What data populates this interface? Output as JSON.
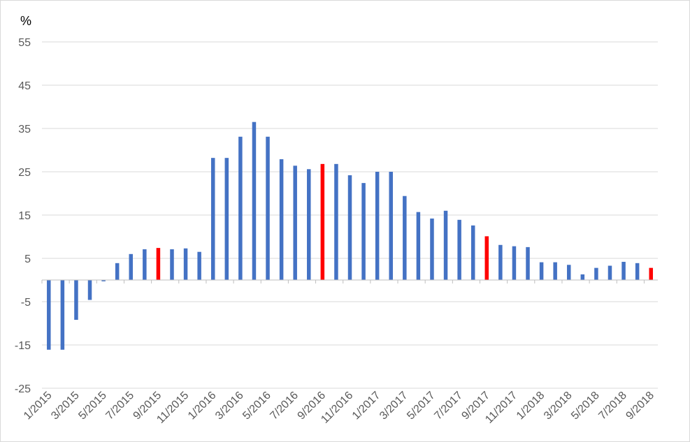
{
  "chart_data": {
    "type": "bar",
    "ylabel": "%",
    "ylim": [
      -25,
      55
    ],
    "yticks": [
      55,
      45,
      35,
      25,
      15,
      5,
      -5,
      -15,
      -25
    ],
    "grid": true,
    "legend": "none",
    "colors": {
      "default": "#4472c4",
      "highlight": "#ff0000",
      "grid": "#d9d9d9",
      "axis": "#bfbfbf"
    },
    "categories": [
      "1/2015",
      "2/2015",
      "3/2015",
      "4/2015",
      "5/2015",
      "6/2015",
      "7/2015",
      "8/2015",
      "9/2015",
      "10/2015",
      "11/2015",
      "12/2015",
      "1/2016",
      "2/2016",
      "3/2016",
      "4/2016",
      "5/2016",
      "6/2016",
      "7/2016",
      "8/2016",
      "9/2016",
      "10/2016",
      "11/2016",
      "12/2016",
      "1/2017",
      "2/2017",
      "3/2017",
      "4/2017",
      "5/2017",
      "6/2017",
      "7/2017",
      "8/2017",
      "9/2017",
      "10/2017",
      "11/2017",
      "12/2017",
      "1/2018",
      "2/2018",
      "3/2018",
      "4/2018",
      "5/2018",
      "6/2018",
      "7/2018",
      "8/2018",
      "9/2018"
    ],
    "category_labels": [
      "1/2015",
      "",
      "3/2015",
      "",
      "5/2015",
      "",
      "7/2015",
      "",
      "9/2015",
      "",
      "11/2015",
      "",
      "1/2016",
      "",
      "3/2016",
      "",
      "5/2016",
      "",
      "7/2016",
      "",
      "9/2016",
      "",
      "11/2016",
      "",
      "1/2017",
      "",
      "3/2017",
      "",
      "5/2017",
      "",
      "7/2017",
      "",
      "9/2017",
      "",
      "11/2017",
      "",
      "1/2018",
      "",
      "3/2018",
      "",
      "5/2018",
      "",
      "7/2018",
      "",
      "9/2018"
    ],
    "values": [
      -16.1,
      -16.1,
      -9.2,
      -4.6,
      -0.3,
      3.9,
      6.0,
      7.1,
      7.4,
      7.1,
      7.3,
      6.5,
      28.2,
      28.2,
      33.1,
      36.5,
      33.1,
      27.9,
      26.4,
      25.6,
      26.8,
      26.8,
      24.2,
      22.4,
      25.0,
      25.0,
      19.4,
      15.7,
      14.2,
      16.0,
      13.9,
      12.6,
      10.1,
      8.1,
      7.8,
      7.6,
      4.1,
      4.1,
      3.5,
      1.3,
      2.8,
      3.3,
      4.2,
      3.9,
      2.8
    ],
    "highlighted": [
      "9/2015",
      "9/2016",
      "9/2017",
      "9/2018"
    ]
  }
}
